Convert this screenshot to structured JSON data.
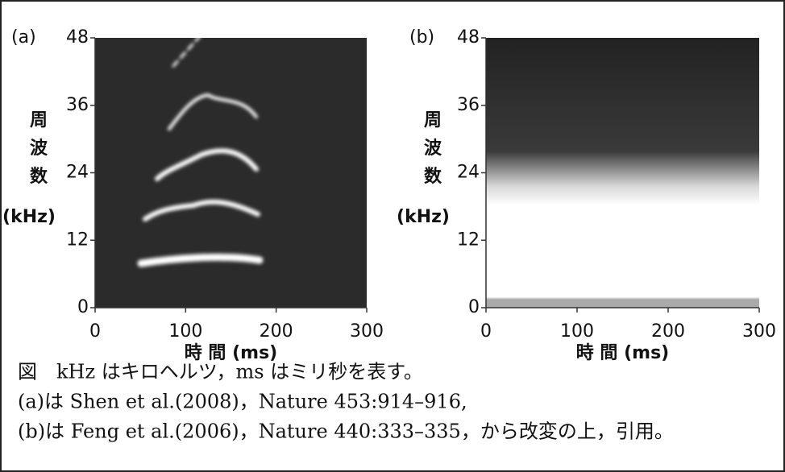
{
  "chart_data": [
    {
      "type": "spectrogram",
      "panel_label": "(a)",
      "ylabel": [
        "周",
        "波",
        "数",
        "(kHz)"
      ],
      "xlabel": "時 間 (ms)",
      "xlim": [
        0,
        300
      ],
      "xticks": [
        0,
        100,
        200,
        300
      ],
      "ylim": [
        0,
        48
      ],
      "yticks": [
        0,
        12,
        24,
        36,
        48
      ]
    },
    {
      "type": "spectrogram",
      "panel_label": "(b)",
      "ylabel": [
        "周",
        "波",
        "数",
        "(kHz)"
      ],
      "xlabel": "時 間 (ms)",
      "xlim": [
        0,
        300
      ],
      "xticks": [
        0,
        100,
        200,
        300
      ],
      "ylim": [
        0,
        48
      ],
      "yticks": [
        0,
        12,
        24,
        36,
        48
      ]
    }
  ],
  "caption": [
    "図　kHz はキロヘルツ，ms はミリ秒を表す。",
    "(a)は Shen et al.(2008)，Nature 453:914–916,",
    "(b)は Feng et al.(2006)，Nature 440:333–335，から改変の上，引用。"
  ]
}
